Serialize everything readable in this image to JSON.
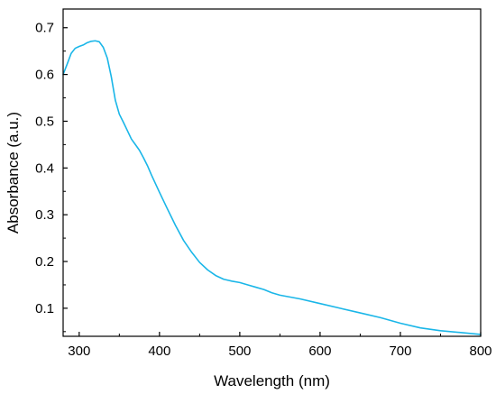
{
  "chart_data": {
    "type": "line",
    "xlabel": "Wavelength (nm)",
    "ylabel": "Absorbance (a.u.)",
    "xlim": [
      280,
      800
    ],
    "ylim": [
      0.04,
      0.74
    ],
    "xticks": [
      300,
      400,
      500,
      600,
      700,
      800
    ],
    "yticks": [
      0.1,
      0.2,
      0.3,
      0.4,
      0.5,
      0.6,
      0.7
    ],
    "grid": false,
    "legend": "none",
    "series": [
      {
        "color": "#1ab6e8",
        "x": [
          280,
          285,
          290,
          295,
          300,
          305,
          310,
          315,
          320,
          325,
          330,
          335,
          340,
          345,
          350,
          355,
          360,
          365,
          370,
          375,
          380,
          385,
          390,
          400,
          410,
          420,
          430,
          440,
          450,
          460,
          470,
          480,
          490,
          500,
          510,
          520,
          530,
          540,
          550,
          575,
          600,
          625,
          650,
          675,
          700,
          725,
          750,
          775,
          800
        ],
        "y": [
          0.6,
          0.622,
          0.645,
          0.656,
          0.66,
          0.663,
          0.668,
          0.671,
          0.672,
          0.67,
          0.658,
          0.635,
          0.595,
          0.545,
          0.515,
          0.498,
          0.48,
          0.462,
          0.45,
          0.438,
          0.422,
          0.405,
          0.385,
          0.348,
          0.312,
          0.277,
          0.245,
          0.22,
          0.198,
          0.182,
          0.17,
          0.162,
          0.158,
          0.155,
          0.15,
          0.145,
          0.14,
          0.133,
          0.128,
          0.12,
          0.11,
          0.1,
          0.09,
          0.08,
          0.068,
          0.058,
          0.052,
          0.048,
          0.044
        ]
      }
    ]
  }
}
